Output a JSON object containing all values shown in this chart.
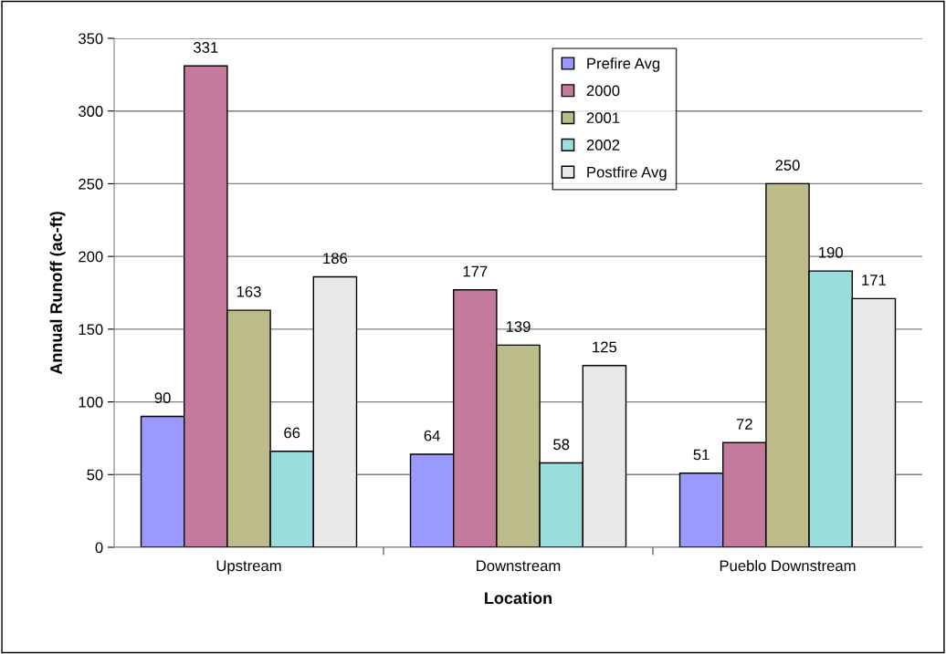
{
  "chart_data": {
    "type": "bar",
    "xlabel": "Location",
    "ylabel": "Annual Runoff (ac-ft)",
    "categories": [
      "Upstream",
      "Downstream",
      "Pueblo Downstream"
    ],
    "series": [
      {
        "name": "Prefire Avg",
        "color": "#9999ff",
        "values": [
          90,
          64,
          51
        ]
      },
      {
        "name": "2000",
        "color": "#c47a9d",
        "values": [
          331,
          177,
          72
        ]
      },
      {
        "name": "2001",
        "color": "#bcbc8a",
        "values": [
          163,
          139,
          250
        ]
      },
      {
        "name": "2002",
        "color": "#99dddd",
        "values": [
          66,
          58,
          190
        ]
      },
      {
        "name": "Postfire Avg",
        "color": "#e8e8e8",
        "values": [
          186,
          125,
          171
        ]
      }
    ],
    "ylim": [
      0,
      350
    ],
    "yticks": [
      0,
      50,
      100,
      150,
      200,
      250,
      300,
      350
    ],
    "grid": "y",
    "legend": "top right",
    "data_labels": true
  }
}
